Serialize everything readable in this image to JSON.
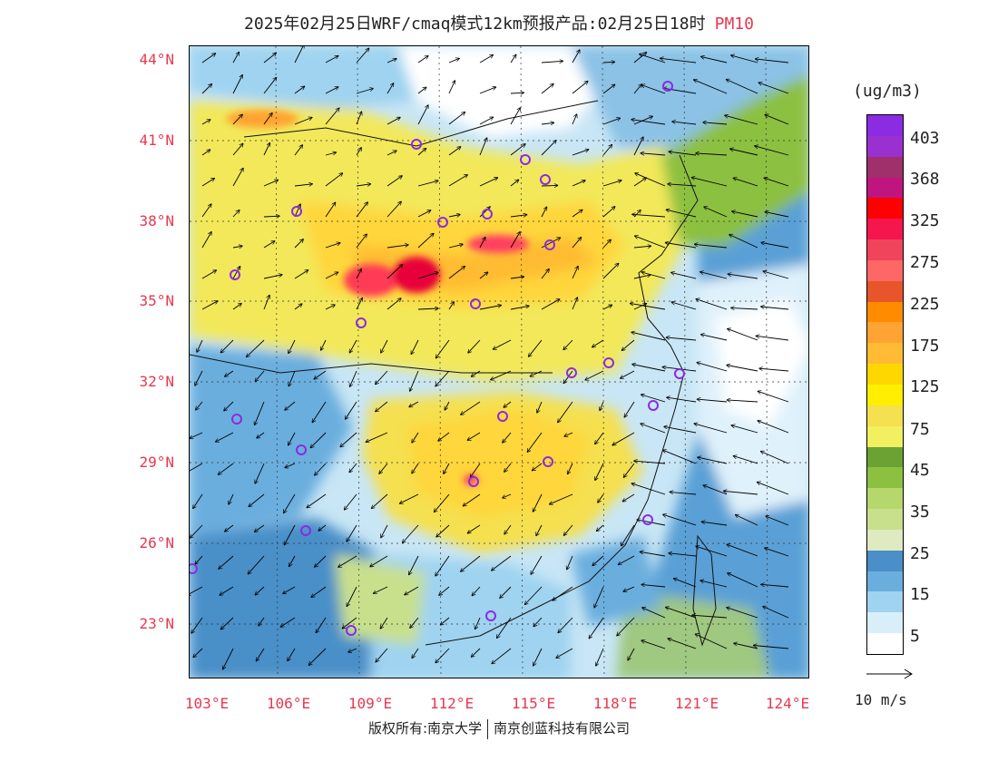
{
  "title": {
    "main": "2025年02月25日WRF/cmaq模式12km预报产品:02月25日18时",
    "pollutant": "PM10"
  },
  "axes": {
    "lat_labels": [
      "44°N",
      "41°N",
      "38°N",
      "35°N",
      "32°N",
      "29°N",
      "26°N",
      "23°N"
    ],
    "lon_labels": [
      "103°E",
      "106°E",
      "109°E",
      "112°E",
      "115°E",
      "118°E",
      "121°E",
      "124°E"
    ]
  },
  "colorbar": {
    "unit": "(ug/m3)",
    "labels": [
      "403",
      "368",
      "325",
      "275",
      "225",
      "175",
      "125",
      "75",
      "45",
      "35",
      "25",
      "15",
      "5"
    ],
    "colors": [
      "#8b2be2",
      "#9b30d0",
      "#a0306a",
      "#c0157e",
      "#ff0000",
      "#f5164e",
      "#f0445a",
      "#ff6666",
      "#e8552a",
      "#ff8c00",
      "#ffa333",
      "#ffbb33",
      "#ffd700",
      "#ffee00",
      "#f5e050",
      "#f0f060",
      "#6aa333",
      "#8cc040",
      "#b6d76b",
      "#c8e08c",
      "#dfeac0",
      "#4a8fc8",
      "#6aaede",
      "#9fd3f0",
      "#d8effa",
      "#ffffff"
    ]
  },
  "wind_legend": {
    "label": "10 m/s"
  },
  "footer": {
    "copyright": "版权所有:南京大学",
    "company": "南京创蓝科技有限公司"
  }
}
